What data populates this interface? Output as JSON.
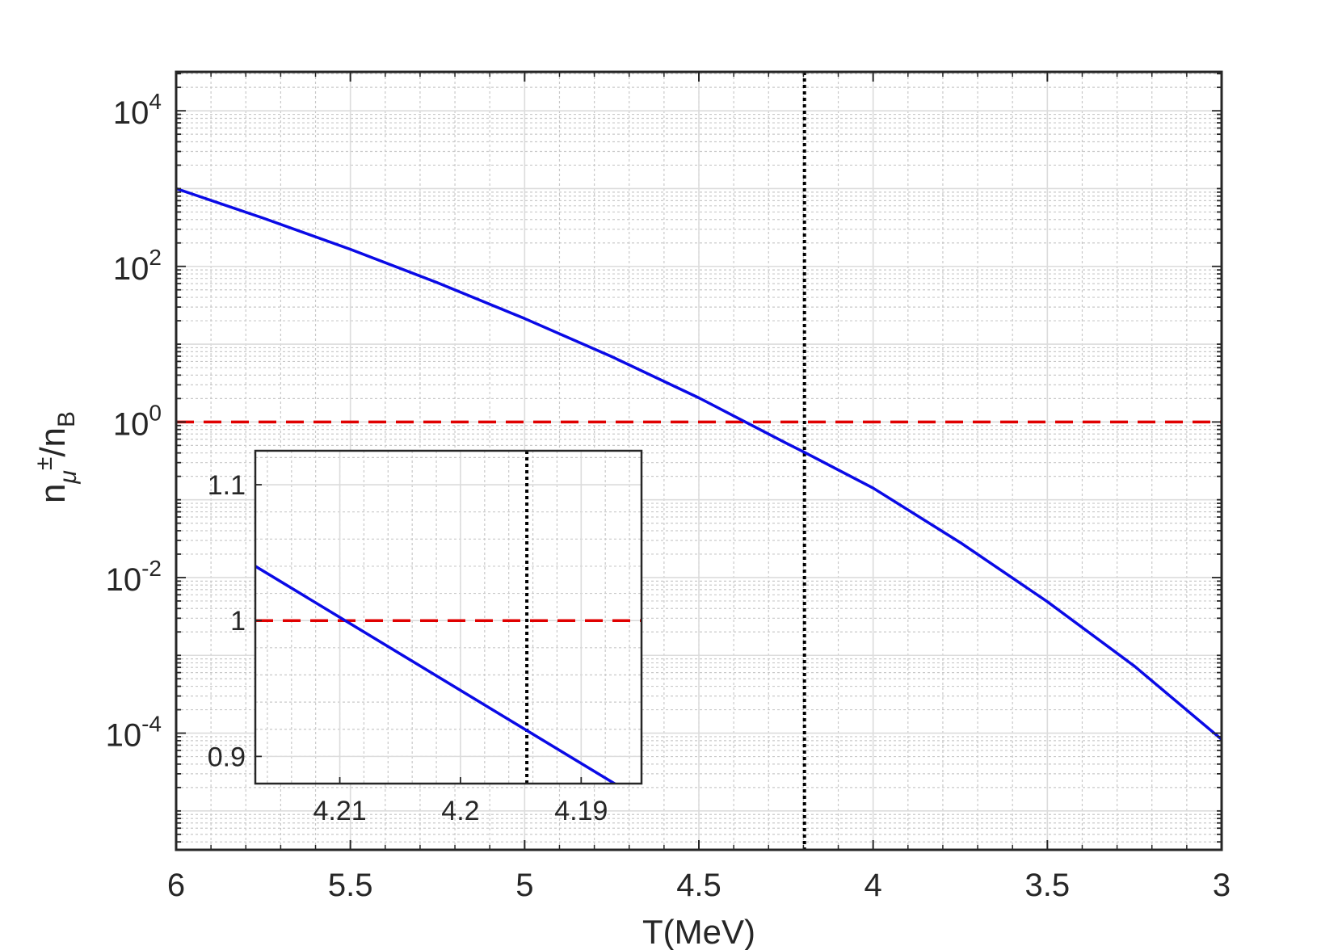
{
  "chart_data": [
    {
      "type": "line",
      "xlabel": "T(MeV)",
      "ylabel": {
        "base": "n",
        "sub": "μ",
        "sup": "±",
        "tail": "/n",
        "tail_sub": "B"
      },
      "x_reversed": true,
      "xlim": [
        3,
        6
      ],
      "ylim_log10": [
        -5.5,
        4.5
      ],
      "y_scale": "log",
      "grid": true,
      "minor_grid": true,
      "x_ticks": [
        {
          "value": 6,
          "label": "6"
        },
        {
          "value": 5.5,
          "label": "5.5"
        },
        {
          "value": 5,
          "label": "5"
        },
        {
          "value": 4.5,
          "label": "4.5"
        },
        {
          "value": 4,
          "label": "4"
        },
        {
          "value": 3.5,
          "label": "3.5"
        },
        {
          "value": 3,
          "label": "3"
        }
      ],
      "y_ticks": [
        {
          "exp": 4,
          "base": "10",
          "sup": "4"
        },
        {
          "exp": 2,
          "base": "10",
          "sup": "2"
        },
        {
          "exp": 0,
          "base": "10",
          "sup": "0"
        },
        {
          "exp": -2,
          "base": "10",
          "sup": "-2"
        },
        {
          "exp": -4,
          "base": "10",
          "sup": "-4"
        }
      ],
      "series": [
        {
          "color": "#0a0ae6",
          "style": "solid",
          "x": [
            6.0,
            5.75,
            5.5,
            5.25,
            5.0,
            4.75,
            4.5,
            4.25,
            4.197,
            4.0,
            3.75,
            3.5,
            3.25,
            3.0
          ],
          "y_log10": [
            3.0,
            2.62,
            2.22,
            1.79,
            1.33,
            0.84,
            0.31,
            -0.27,
            -0.39,
            -0.85,
            -1.55,
            -2.31,
            -3.14,
            -4.08
          ]
        }
      ],
      "reference_lines": [
        {
          "orientation": "horizontal",
          "y": 1,
          "color": "#e00000",
          "style": "dashed"
        },
        {
          "orientation": "vertical",
          "x": 4.197,
          "color": "#000000",
          "style": "dotted"
        }
      ]
    },
    {
      "type": "line",
      "role": "inset",
      "x_reversed": true,
      "xlim": [
        4.185,
        4.217
      ],
      "ylim": [
        0.88,
        1.125
      ],
      "grid": true,
      "minor_grid": true,
      "x_ticks": [
        {
          "value": 4.21,
          "label": "4.21"
        },
        {
          "value": 4.2,
          "label": "4.2"
        },
        {
          "value": 4.19,
          "label": "4.19"
        }
      ],
      "y_ticks": [
        {
          "value": 1.1,
          "label": "1.1"
        },
        {
          "value": 1,
          "label": "1"
        },
        {
          "value": 0.9,
          "label": "0.9"
        }
      ],
      "series": [
        {
          "color": "#0a0ae6",
          "style": "solid",
          "x": [
            4.217,
            4.185
          ],
          "y": [
            1.04,
            0.868
          ]
        }
      ],
      "reference_lines": [
        {
          "orientation": "horizontal",
          "y": 1,
          "color": "#e00000",
          "style": "dashed"
        },
        {
          "orientation": "vertical",
          "x": 4.1945,
          "color": "#000000",
          "style": "dotted"
        }
      ]
    }
  ]
}
